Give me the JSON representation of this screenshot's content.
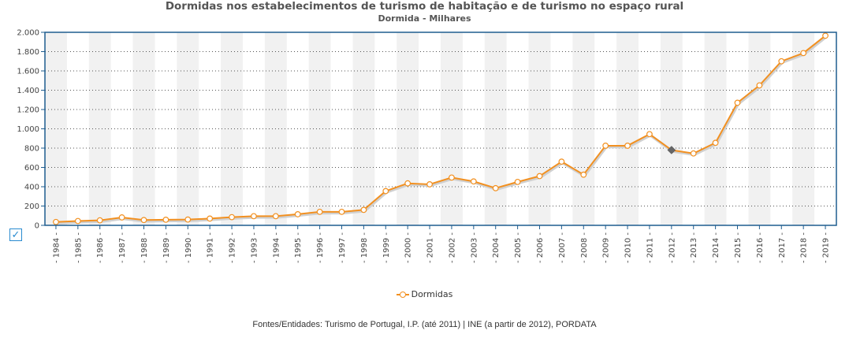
{
  "title": "Dormidas nos estabelecimentos de turismo de habitação e de turismo no espaço rural",
  "subtitle": "Dormida - Milhares",
  "source": "Fontes/Entidades: Turismo de Portugal, I.P. (até 2011) | INE (a partir de 2012), PORDATA",
  "checkbox_glyph": "✓",
  "chart_data": {
    "type": "line",
    "title": "Dormidas nos estabelecimentos de turismo de habitação e de turismo no espaço rural",
    "subtitle": "Dormida - Milhares",
    "categories": [
      "1984",
      "1985",
      "1986",
      "1987",
      "1988",
      "1989",
      "1990",
      "1991",
      "1992",
      "1993",
      "1994",
      "1995",
      "1996",
      "1997",
      "1998",
      "1999",
      "2000",
      "2001",
      "2002",
      "2003",
      "2004",
      "2005",
      "2006",
      "2007",
      "2008",
      "2009",
      "2010",
      "2011",
      "2012",
      "2013",
      "2014",
      "2015",
      "2016",
      "2017",
      "2018",
      "2019"
    ],
    "series": [
      {
        "name": "Dormidas",
        "color": "#f29020",
        "values": [
          35,
          45,
          52,
          82,
          55,
          58,
          60,
          70,
          85,
          95,
          95,
          115,
          140,
          140,
          160,
          355,
          435,
          425,
          495,
          455,
          385,
          450,
          510,
          660,
          525,
          825,
          825,
          945,
          780,
          745,
          855,
          1270,
          1450,
          1700,
          1785,
          1965
        ]
      }
    ],
    "highlight_index": 28,
    "ylim": [
      0,
      2000
    ],
    "yticks": [
      0,
      200,
      400,
      600,
      800,
      1000,
      1200,
      1400,
      1600,
      1800,
      2000
    ],
    "ytick_labels": [
      "0",
      "200",
      "400",
      "600",
      "800",
      "1.000",
      "1.200",
      "1.400",
      "1.600",
      "1.800",
      "2.000"
    ],
    "grid": true,
    "legend_position": "bottom-center",
    "colors": {
      "frame": "#1f5d8f",
      "band": "#f1f1f1",
      "grid": "#555555",
      "highlight": "#666666"
    }
  }
}
